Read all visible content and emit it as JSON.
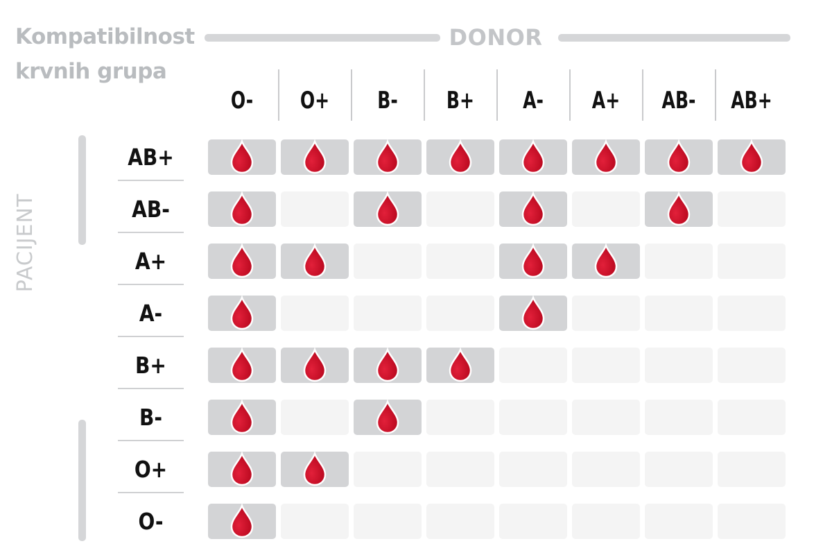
{
  "title": {
    "line1": "Kompatibilnost",
    "line2": "krvnih grupa"
  },
  "axis": {
    "donor": "DONOR",
    "patient": "PACIJENT"
  },
  "donors": [
    "O-",
    "O+",
    "B-",
    "B+",
    "A-",
    "A+",
    "AB-",
    "AB+"
  ],
  "patients": [
    "AB+",
    "AB-",
    "A+",
    "A-",
    "B+",
    "B-",
    "O+",
    "O-"
  ],
  "compatibility": [
    [
      1,
      1,
      1,
      1,
      1,
      1,
      1,
      1
    ],
    [
      1,
      0,
      1,
      0,
      1,
      0,
      1,
      0
    ],
    [
      1,
      1,
      0,
      0,
      1,
      1,
      0,
      0
    ],
    [
      1,
      0,
      0,
      0,
      1,
      0,
      0,
      0
    ],
    [
      1,
      1,
      1,
      1,
      0,
      0,
      0,
      0
    ],
    [
      1,
      0,
      1,
      0,
      0,
      0,
      0,
      0
    ],
    [
      1,
      1,
      0,
      0,
      0,
      0,
      0,
      0
    ],
    [
      1,
      0,
      0,
      0,
      0,
      0,
      0,
      0
    ]
  ],
  "icons": {
    "compatible": "blood-drop-icon"
  },
  "colors": {
    "drop": "#b5061c",
    "drop_highlight": "#e2203a",
    "active_cell": "#d3d4d6",
    "empty_cell": "#f4f4f4"
  }
}
